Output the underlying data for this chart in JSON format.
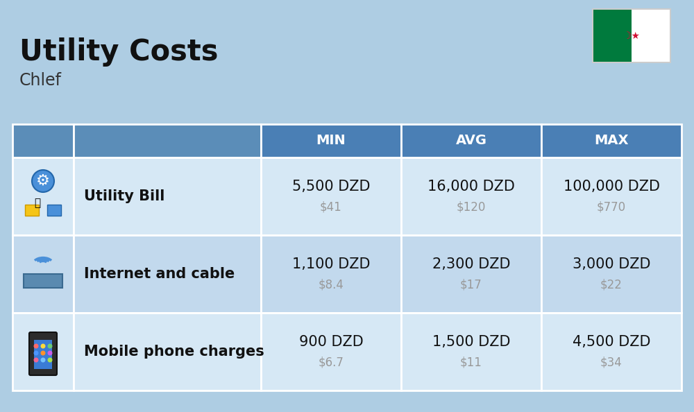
{
  "title": "Utility Costs",
  "subtitle": "Chlef",
  "background_color": "#aecde3",
  "header_color": "#4a7fb5",
  "header_text_color": "#ffffff",
  "row_color_1": "#d6e8f5",
  "row_color_2": "#c2d9ed",
  "col_header_bg": "#5b8db8",
  "rows": [
    {
      "label": "Utility Bill",
      "min_dzd": "5,500 DZD",
      "min_usd": "$41",
      "avg_dzd": "16,000 DZD",
      "avg_usd": "$120",
      "max_dzd": "100,000 DZD",
      "max_usd": "$770",
      "icon": "utility"
    },
    {
      "label": "Internet and cable",
      "min_dzd": "1,100 DZD",
      "min_usd": "$8.4",
      "avg_dzd": "2,300 DZD",
      "avg_usd": "$17",
      "max_dzd": "3,000 DZD",
      "max_usd": "$22",
      "icon": "internet"
    },
    {
      "label": "Mobile phone charges",
      "min_dzd": "900 DZD",
      "min_usd": "$6.7",
      "avg_dzd": "1,500 DZD",
      "avg_usd": "$11",
      "max_dzd": "4,500 DZD",
      "max_usd": "$34",
      "icon": "mobile"
    }
  ],
  "col_headers": [
    "MIN",
    "AVG",
    "MAX"
  ],
  "title_fontsize": 30,
  "subtitle_fontsize": 17,
  "header_fontsize": 14,
  "cell_dzd_fontsize": 15,
  "cell_usd_fontsize": 12,
  "label_fontsize": 15,
  "usd_color": "#999999",
  "flag_green": "#007a3d",
  "flag_white": "#ffffff",
  "flag_red": "#d21034"
}
